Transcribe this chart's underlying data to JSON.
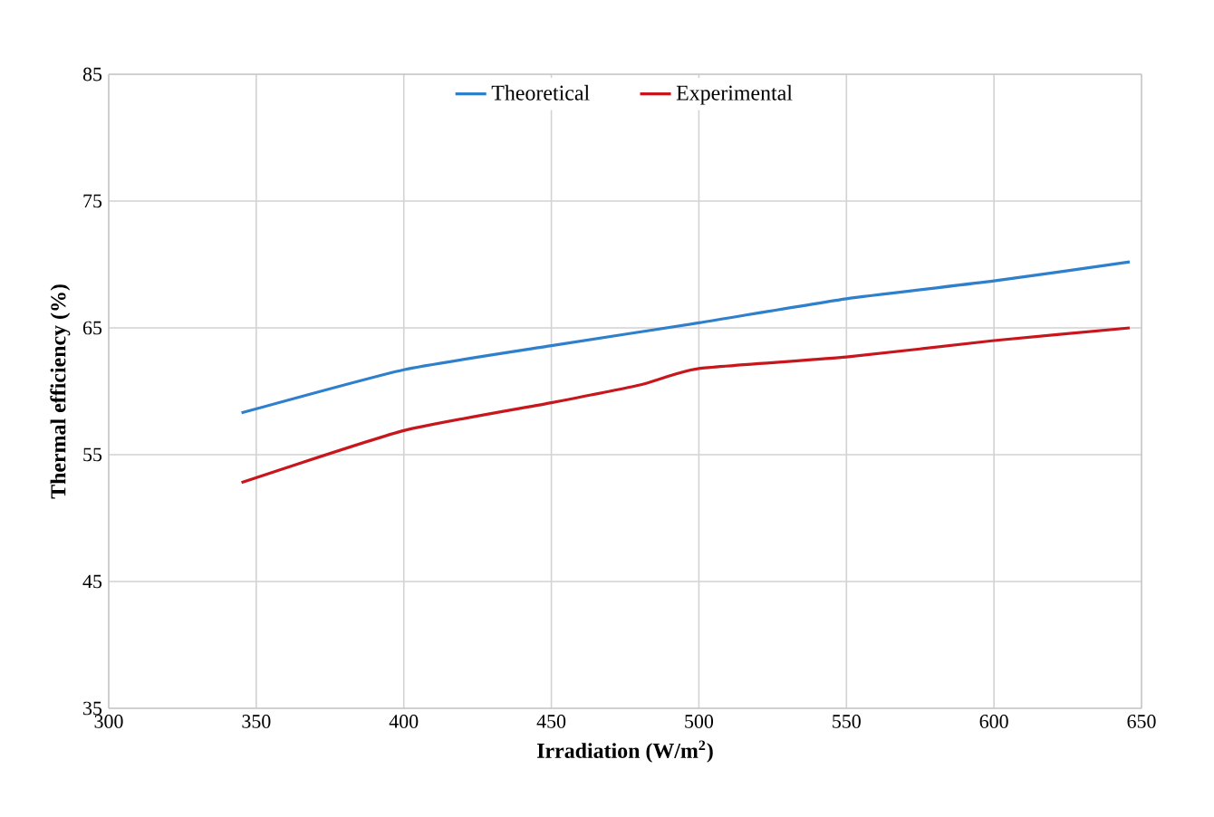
{
  "chart_data": {
    "type": "line",
    "xlabel": "Irradiation (W/m$^{2}$)",
    "ylabel": "Thermal efficiency  (%)",
    "xlim": [
      300,
      650
    ],
    "xticks": [
      300,
      350,
      400,
      450,
      500,
      550,
      600,
      650
    ],
    "ylim": [
      35,
      85
    ],
    "yticks": [
      35,
      45,
      55,
      65,
      75,
      85
    ],
    "grid": true,
    "legend": "top",
    "marker": "none",
    "line_style": "solid",
    "series": [
      {
        "name": "Theoretical",
        "color": "#2e7fcc",
        "x": [
          345,
          400,
          450,
          500,
          550,
          600,
          646
        ],
        "values": [
          58.3,
          61.7,
          63.6,
          65.4,
          67.3,
          68.7,
          70.2
        ]
      },
      {
        "name": "Experimental",
        "color": "#c8161d",
        "x": [
          345,
          400,
          450,
          480,
          500,
          550,
          600,
          646
        ],
        "values": [
          52.8,
          56.9,
          59.1,
          60.5,
          61.8,
          62.7,
          64.0,
          65.0
        ]
      }
    ]
  }
}
